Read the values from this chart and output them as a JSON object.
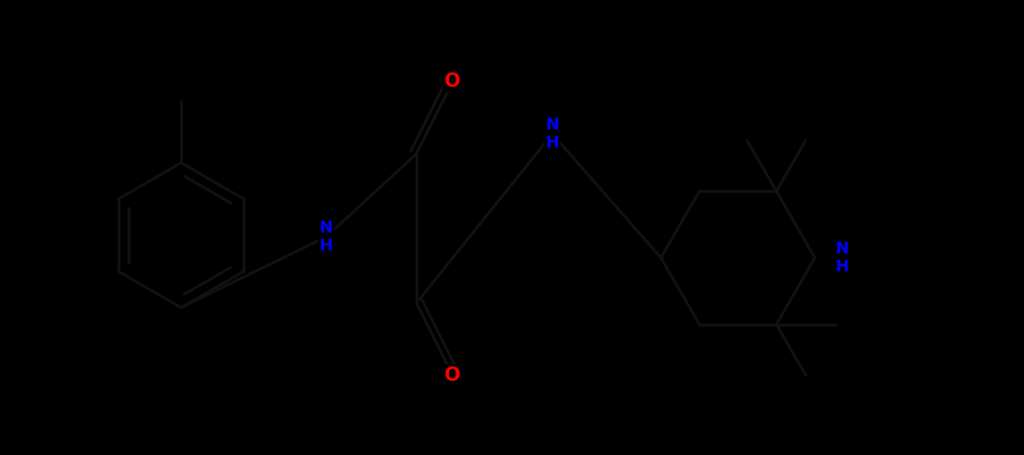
{
  "bg_color": "#000000",
  "bond_color": "#000000",
  "N_color": "#0000FF",
  "O_color": "#FF0000",
  "figsize": [
    11.31,
    5.03
  ],
  "dpi": 100,
  "xlim": [
    0,
    1131
  ],
  "ylim": [
    0,
    503
  ]
}
